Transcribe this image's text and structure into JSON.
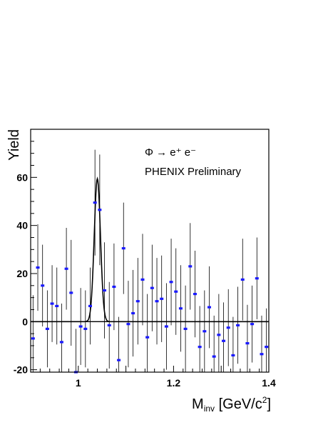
{
  "chart_data": {
    "type": "scatter",
    "title": "",
    "xlabel": "",
    "ylabel": "Yield",
    "xlim": [
      0.9,
      1.4
    ],
    "ylim": [
      -21,
      80
    ],
    "xticks_major": [
      1.0,
      1.2,
      1.4
    ],
    "xtick_labels": [
      "1",
      "1.2",
      "1.4"
    ],
    "yticks_major": [
      -20,
      0,
      20,
      40,
      60
    ],
    "ytick_labels": [
      "-20",
      "0",
      "20",
      "40",
      "60"
    ],
    "grid": false,
    "annotations": {
      "channel": "Φ → e⁺ e⁻",
      "label": "PHENIX  Preliminary"
    },
    "series": [
      {
        "type": "points_with_errors",
        "color": "#1a1aff",
        "x": [
          0.905,
          0.915,
          0.925,
          0.935,
          0.945,
          0.955,
          0.965,
          0.975,
          0.985,
          0.995,
          1.005,
          1.015,
          1.025,
          1.035,
          1.045,
          1.055,
          1.065,
          1.075,
          1.085,
          1.095,
          1.105,
          1.115,
          1.125,
          1.135,
          1.145,
          1.155,
          1.165,
          1.175,
          1.185,
          1.195,
          1.205,
          1.215,
          1.225,
          1.235,
          1.245,
          1.255,
          1.265,
          1.275,
          1.285,
          1.295,
          1.305,
          1.315,
          1.325,
          1.335,
          1.345,
          1.355,
          1.365,
          1.375,
          1.385,
          1.395
        ],
        "y": [
          -7,
          22.5,
          15,
          -3,
          7.5,
          6.5,
          -8.5,
          22,
          12,
          -21,
          -2,
          -3,
          6.5,
          49.5,
          46.5,
          13,
          -1.5,
          14.5,
          -16,
          30.5,
          -1,
          3.5,
          8.5,
          17.5,
          -6.5,
          14,
          8.5,
          9.5,
          -2,
          16.5,
          12.5,
          5.5,
          -3,
          23,
          11.5,
          -10.5,
          -4,
          6,
          -14.5,
          -5.5,
          -8,
          -2.5,
          -14,
          -1.5,
          17.5,
          -9,
          -1,
          18,
          -13.5,
          -10.5
        ],
        "yerr": [
          18,
          18,
          17,
          16,
          16,
          16,
          16,
          17,
          22,
          18,
          16,
          16,
          16,
          22,
          23,
          20,
          18,
          18,
          18,
          19,
          18,
          18,
          18,
          19,
          18,
          18,
          18,
          18,
          18,
          18,
          18,
          18,
          18,
          18,
          18,
          17,
          17,
          17,
          17,
          17,
          16,
          16,
          16,
          16,
          17,
          16,
          16,
          17,
          16,
          16
        ]
      },
      {
        "type": "fit_curve",
        "color": "#000000",
        "mean": 1.04,
        "sigma": 0.0065,
        "amplitude": 59.5
      }
    ]
  }
}
